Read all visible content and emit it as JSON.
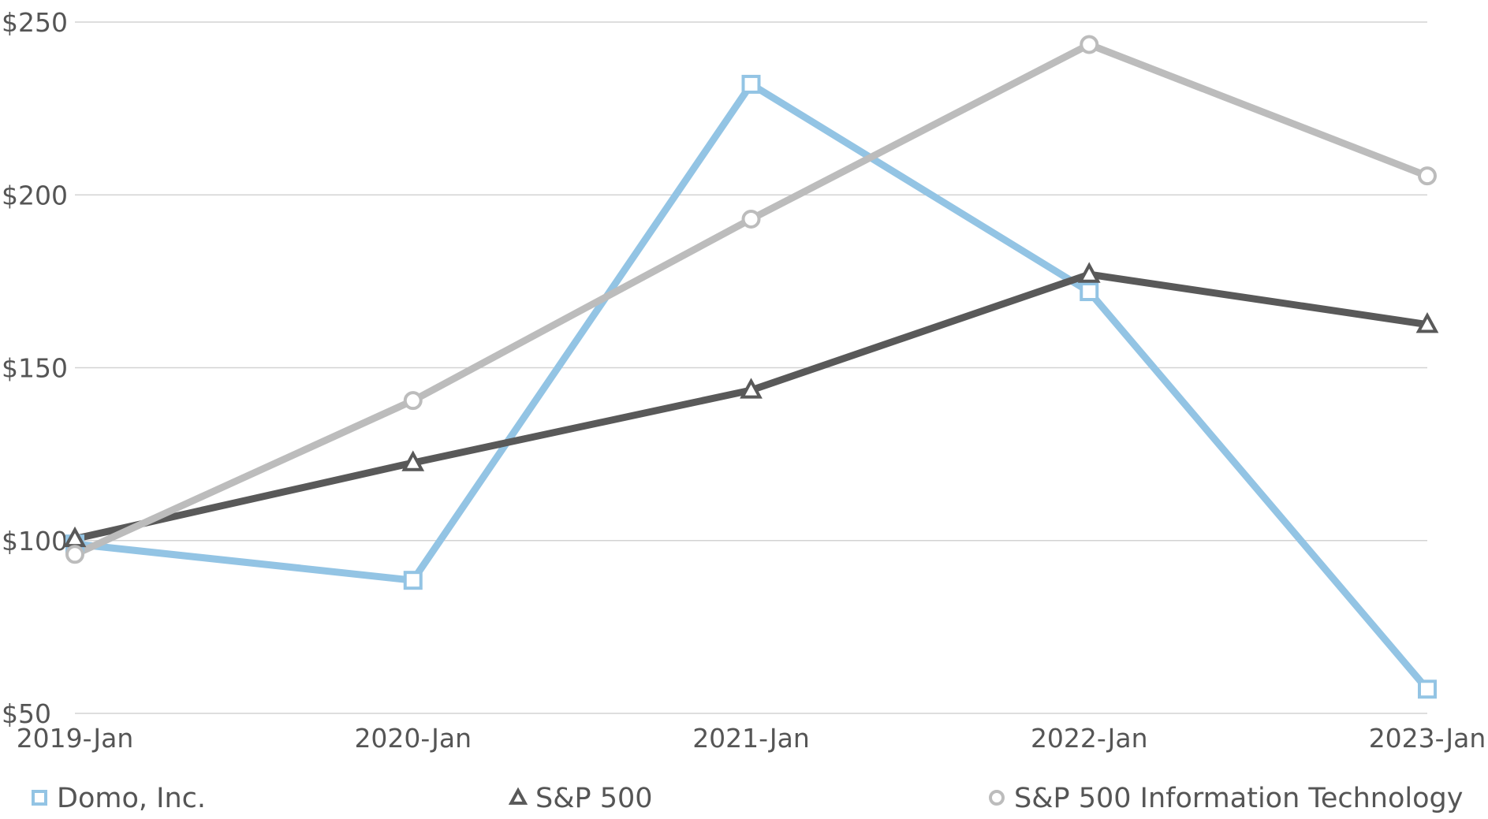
{
  "chart_data": {
    "type": "line",
    "title": "",
    "xlabel": "",
    "ylabel": "",
    "categories": [
      "2019-Jan",
      "2020-Jan",
      "2021-Jan",
      "2022-Jan",
      "2023-Jan"
    ],
    "ylim": [
      50,
      250
    ],
    "yticks": [
      50,
      100,
      150,
      200,
      250
    ],
    "ytick_labels": [
      "$50",
      "$100",
      "$150",
      "$200",
      "$250"
    ],
    "grid": true,
    "legend_position": "bottom",
    "series": [
      {
        "name": "Domo, Inc.",
        "values": [
          99,
          88.5,
          232,
          172,
          57
        ],
        "color": "#93c4e4",
        "marker": "square"
      },
      {
        "name": "S&P 500",
        "values": [
          100.5,
          122.5,
          143.5,
          177,
          162.5
        ],
        "color": "#595959",
        "marker": "triangle"
      },
      {
        "name": "S&P 500 Information Technology",
        "values": [
          96,
          140.5,
          193,
          243.5,
          205.5
        ],
        "color": "#bcbcbc",
        "marker": "circle"
      }
    ]
  }
}
